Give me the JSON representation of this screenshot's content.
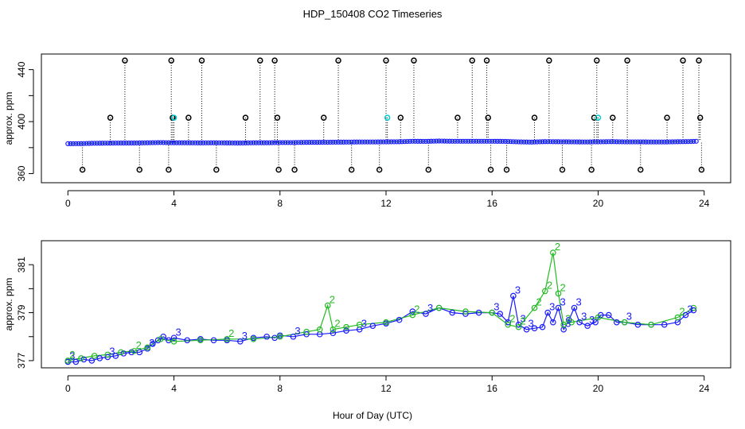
{
  "chart_data": [
    {
      "type": "scatter",
      "title": "HDP_150408  CO2 Timeseries",
      "xlabel": "",
      "ylabel": "approx. ppm",
      "xlim": [
        -1,
        25
      ],
      "ylim": [
        353,
        452
      ],
      "x_ticks": [
        0,
        4,
        8,
        12,
        16,
        20,
        24
      ],
      "x_tick_labels": [
        "0",
        "4",
        "8",
        "12",
        "16",
        "20",
        "24"
      ],
      "y_ticks": [
        360,
        380,
        400,
        420,
        440
      ],
      "y_tick_labels": [
        "360",
        "",
        "400",
        "",
        "440"
      ],
      "baseline": 353,
      "series": [
        {
          "name": "main-trace",
          "color": "#1a1aff",
          "x": [
            0.0,
            0.5,
            1.0,
            1.5,
            2.0,
            2.5,
            3.0,
            3.5,
            4.0,
            4.5,
            5.0,
            5.5,
            6.0,
            6.5,
            7.0,
            7.5,
            8.0,
            8.5,
            9.0,
            9.5,
            10.0,
            10.5,
            11.0,
            11.5,
            12.0,
            12.5,
            13.0,
            13.5,
            14.0,
            14.5,
            15.0,
            15.5,
            16.0,
            16.5,
            17.0,
            17.5,
            18.0,
            18.5,
            19.0,
            19.5,
            20.0,
            20.5,
            21.0,
            21.5,
            22.0,
            22.5,
            23.0,
            23.5,
            23.8
          ],
          "values": [
            377,
            377.1,
            377.4,
            377.5,
            377.6,
            377.6,
            377.8,
            378,
            377.8,
            377.8,
            377.7,
            377.8,
            377.7,
            377.6,
            377.8,
            377.8,
            378,
            378,
            378.2,
            378.2,
            378.3,
            378.4,
            378.5,
            378.5,
            378.6,
            378.7,
            379.1,
            379,
            379.3,
            379.1,
            379.1,
            379.1,
            379.1,
            379,
            378.6,
            378.4,
            378.8,
            378.7,
            378.6,
            378.5,
            378.6,
            378.8,
            378.6,
            378.6,
            378.5,
            378.5,
            378.7,
            378.9,
            379.2
          ]
        }
      ],
      "outliers_high": [
        {
          "x": 2.15,
          "y": 447
        },
        {
          "x": 3.9,
          "y": 447
        },
        {
          "x": 5.05,
          "y": 447
        },
        {
          "x": 7.25,
          "y": 447
        },
        {
          "x": 7.8,
          "y": 447
        },
        {
          "x": 10.2,
          "y": 447
        },
        {
          "x": 12.0,
          "y": 447
        },
        {
          "x": 13.05,
          "y": 447
        },
        {
          "x": 15.25,
          "y": 447
        },
        {
          "x": 15.8,
          "y": 447
        },
        {
          "x": 18.15,
          "y": 447
        },
        {
          "x": 19.95,
          "y": 447
        },
        {
          "x": 21.1,
          "y": 447
        },
        {
          "x": 23.2,
          "y": 447
        },
        {
          "x": 23.8,
          "y": 447
        }
      ],
      "outliers_mid": [
        {
          "x": 1.6,
          "y": 403
        },
        {
          "x": 3.95,
          "y": 403
        },
        {
          "x": 4.55,
          "y": 403
        },
        {
          "x": 6.7,
          "y": 403
        },
        {
          "x": 7.9,
          "y": 403
        },
        {
          "x": 9.65,
          "y": 403
        },
        {
          "x": 12.55,
          "y": 403
        },
        {
          "x": 14.7,
          "y": 403
        },
        {
          "x": 15.85,
          "y": 403
        },
        {
          "x": 17.6,
          "y": 403
        },
        {
          "x": 19.85,
          "y": 403
        },
        {
          "x": 20.55,
          "y": 403
        },
        {
          "x": 22.6,
          "y": 403
        },
        {
          "x": 23.85,
          "y": 403
        }
      ],
      "outliers_mid_cyan": [
        {
          "x": 4.0,
          "y": 403
        },
        {
          "x": 12.05,
          "y": 403
        },
        {
          "x": 20.0,
          "y": 403
        }
      ],
      "outliers_low": [
        {
          "x": 0.55,
          "y": 363
        },
        {
          "x": 2.7,
          "y": 363
        },
        {
          "x": 3.8,
          "y": 363
        },
        {
          "x": 5.6,
          "y": 363
        },
        {
          "x": 7.95,
          "y": 363
        },
        {
          "x": 8.55,
          "y": 363
        },
        {
          "x": 10.7,
          "y": 363
        },
        {
          "x": 11.75,
          "y": 363
        },
        {
          "x": 13.6,
          "y": 363
        },
        {
          "x": 15.95,
          "y": 363
        },
        {
          "x": 16.55,
          "y": 363
        },
        {
          "x": 18.65,
          "y": 363
        },
        {
          "x": 19.75,
          "y": 363
        },
        {
          "x": 21.6,
          "y": 363
        },
        {
          "x": 23.9,
          "y": 363
        }
      ]
    },
    {
      "type": "line",
      "title": "",
      "xlabel": "Hour of Day (UTC)",
      "ylabel": "approx. ppm",
      "xlim": [
        -1,
        25
      ],
      "ylim": [
        376.7,
        382.0
      ],
      "x_ticks": [
        0,
        4,
        8,
        12,
        16,
        20,
        24
      ],
      "x_tick_labels": [
        "0",
        "4",
        "8",
        "12",
        "16",
        "20",
        "24"
      ],
      "y_ticks": [
        377,
        378,
        379,
        380,
        381
      ],
      "y_tick_labels": [
        "377",
        "",
        "379",
        "",
        "381"
      ],
      "series": [
        {
          "name": "instrument-3",
          "label": "3",
          "color": "#1a1aff",
          "x": [
            0.0,
            0.3,
            0.6,
            0.9,
            1.2,
            1.5,
            1.8,
            2.1,
            2.4,
            2.7,
            3.0,
            3.2,
            3.4,
            3.6,
            3.8,
            4.0,
            4.5,
            5.0,
            5.5,
            6.0,
            6.5,
            7.0,
            7.5,
            7.8,
            8.0,
            8.5,
            9.0,
            9.5,
            10.0,
            10.5,
            11.0,
            11.5,
            12.0,
            12.5,
            13.0,
            13.5,
            14.0,
            14.5,
            15.0,
            15.5,
            16.0,
            16.3,
            16.6,
            16.8,
            17.0,
            17.3,
            17.6,
            17.9,
            18.1,
            18.3,
            18.5,
            18.7,
            18.9,
            19.1,
            19.3,
            19.6,
            19.9,
            20.1,
            20.4,
            20.7,
            21.0,
            21.5,
            22.0,
            22.5,
            23.0,
            23.3,
            23.6
          ],
          "values": [
            376.95,
            376.95,
            377.05,
            377.0,
            377.1,
            377.15,
            377.2,
            377.3,
            377.35,
            377.35,
            377.5,
            377.7,
            377.85,
            378.0,
            377.85,
            377.95,
            377.85,
            377.9,
            377.85,
            377.85,
            377.8,
            377.95,
            378.0,
            377.95,
            378.05,
            378.0,
            378.1,
            378.1,
            378.15,
            378.25,
            378.3,
            378.45,
            378.55,
            378.7,
            379.05,
            378.95,
            379.2,
            379.0,
            378.95,
            379.0,
            379.0,
            378.95,
            378.6,
            379.7,
            378.5,
            378.3,
            378.35,
            378.4,
            379.0,
            378.6,
            379.2,
            378.3,
            378.7,
            379.2,
            378.6,
            378.45,
            378.6,
            378.9,
            378.9,
            378.6,
            378.6,
            378.5,
            378.5,
            378.5,
            378.6,
            378.9,
            379.1
          ]
        },
        {
          "name": "instrument-2",
          "label": "2",
          "color": "#22bb22",
          "x": [
            0.0,
            0.5,
            1.0,
            1.5,
            2.0,
            2.5,
            3.0,
            3.5,
            4.0,
            5.0,
            6.0,
            7.0,
            8.0,
            9.0,
            9.5,
            9.8,
            10.0,
            10.5,
            11.0,
            12.0,
            13.0,
            14.0,
            15.0,
            16.0,
            16.6,
            17.0,
            17.6,
            18.0,
            18.3,
            18.5,
            18.7,
            19.0,
            20.0,
            21.0,
            22.0,
            23.0,
            23.6
          ],
          "values": [
            377.0,
            377.1,
            377.2,
            377.25,
            377.35,
            377.4,
            377.55,
            377.9,
            377.8,
            377.85,
            377.9,
            377.9,
            378.0,
            378.2,
            378.3,
            379.3,
            378.3,
            378.4,
            378.5,
            378.6,
            378.9,
            379.2,
            379.05,
            379.0,
            378.5,
            378.4,
            379.2,
            379.9,
            381.5,
            379.8,
            378.5,
            378.6,
            378.8,
            378.6,
            378.5,
            378.8,
            379.2
          ]
        }
      ]
    }
  ]
}
